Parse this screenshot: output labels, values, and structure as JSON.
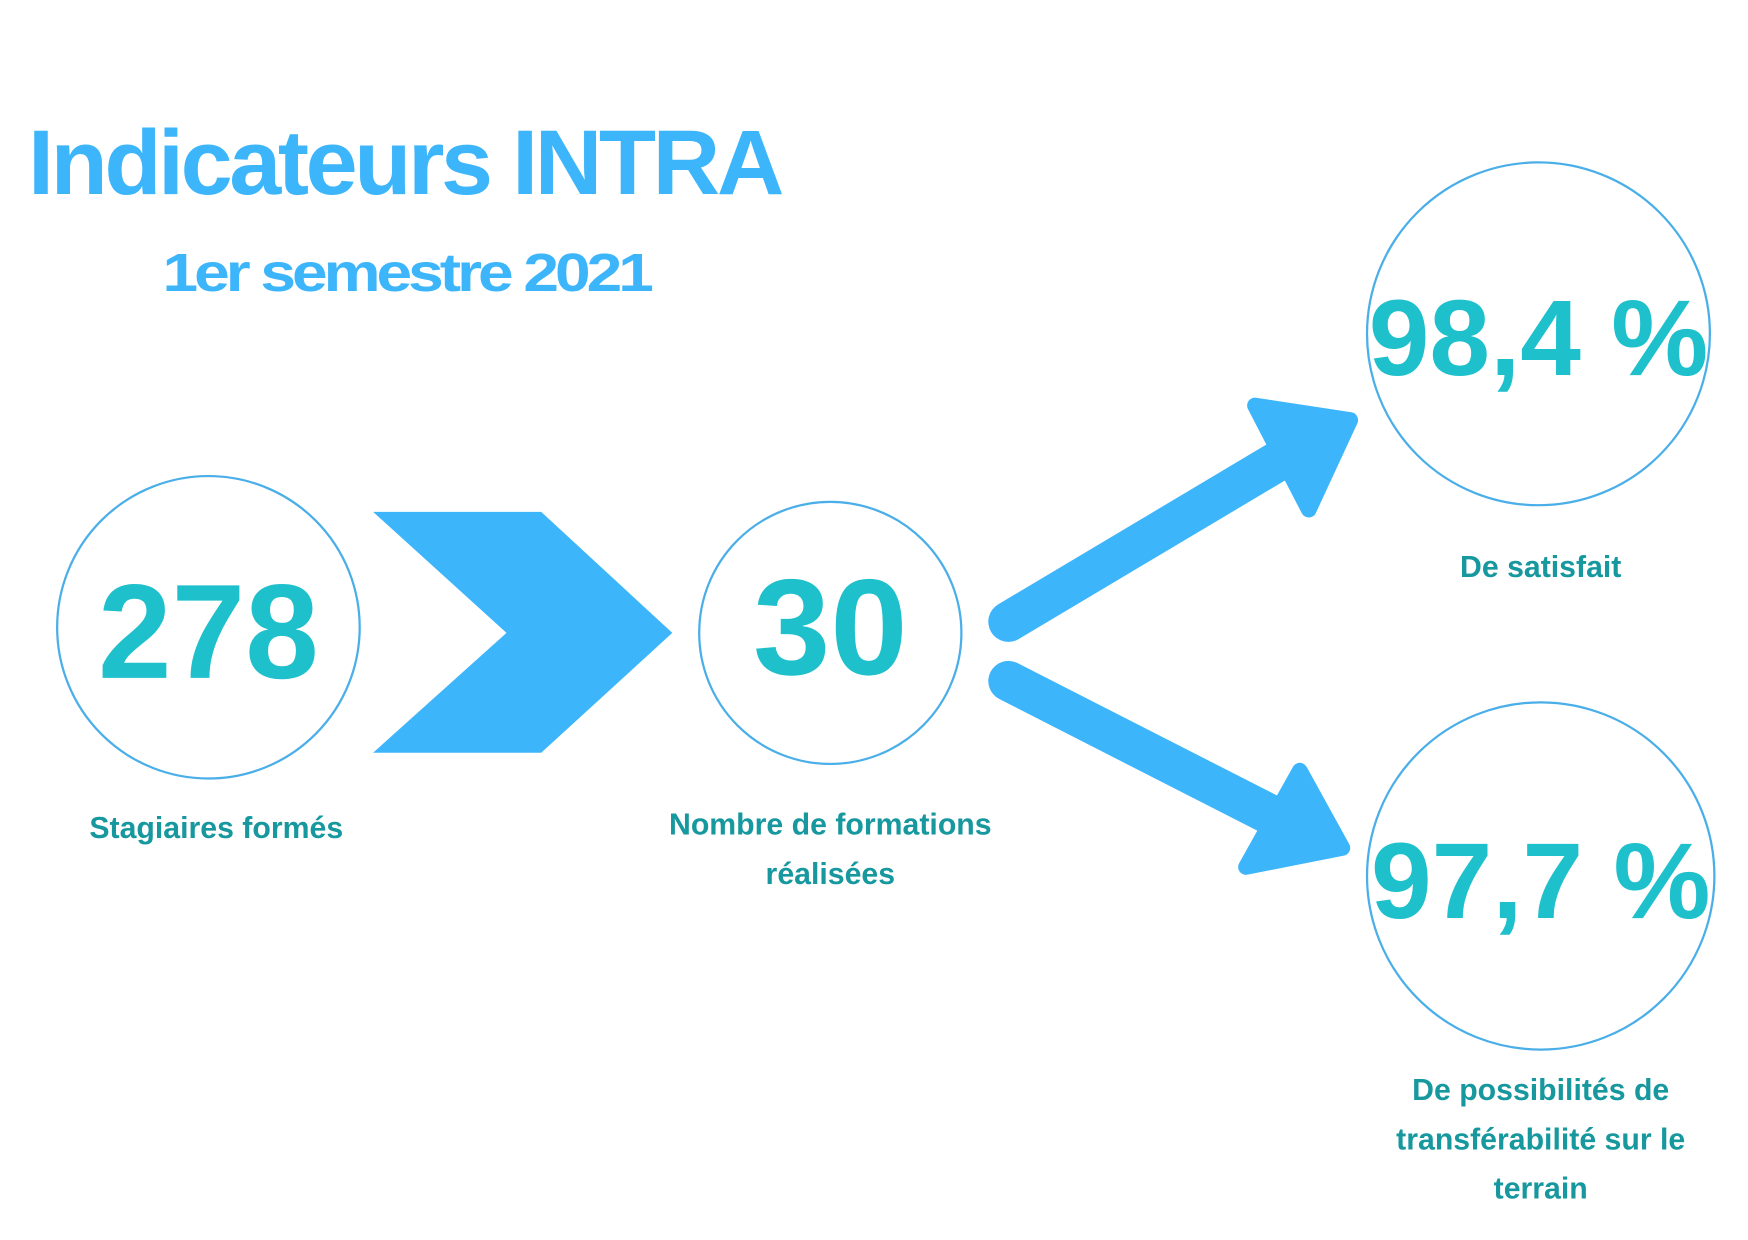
{
  "header": {
    "title": "Indicateurs INTRA",
    "subtitle": "1er semestre 2021"
  },
  "indicators": [
    {
      "value": "278",
      "label_lines": [
        "Stagiaires formés"
      ]
    },
    {
      "value": "30",
      "label_lines": [
        "Nombre de formations",
        "réalisées"
      ]
    },
    {
      "value": "98,4 %",
      "label_lines": [
        "De satisfait"
      ]
    },
    {
      "value": "97,7 %",
      "label_lines": [
        "De possibilités de",
        "transférabilité sur le",
        "terrain"
      ]
    }
  ]
}
